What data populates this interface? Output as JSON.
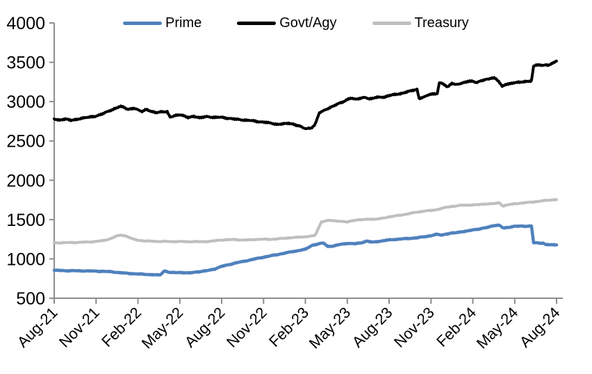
{
  "chart_data": {
    "type": "line",
    "title": "",
    "legend_position": "top",
    "grid": false,
    "x_axis": {
      "unit": "month",
      "range_months": [
        0,
        36
      ],
      "tick_every_months": 3,
      "tick_labels": [
        "Aug-21",
        "Nov-21",
        "Feb-22",
        "May-22",
        "Aug-22",
        "Nov-22",
        "Feb-23",
        "May-23",
        "Aug-23",
        "Nov-23",
        "Feb-24",
        "May-24",
        "Aug-24"
      ]
    },
    "y_axis": {
      "range": [
        500,
        4000
      ],
      "ticks": [
        500,
        1000,
        1500,
        2000,
        2500,
        3000,
        3500,
        4000
      ],
      "tick_labels": [
        "500",
        "1000",
        "1500",
        "2000",
        "2500",
        "3000",
        "3500",
        "4000"
      ]
    },
    "colors": {
      "prime": "#4F81BD",
      "govt_agy": "#000000",
      "treasury": "#BFBFBF",
      "axis": "#8C8C8C",
      "text": "#000000"
    },
    "series": [
      {
        "name": "Prime",
        "color": "#4F81BD",
        "points": [
          [
            0,
            855
          ],
          [
            1,
            850
          ],
          [
            2,
            848
          ],
          [
            3,
            845
          ],
          [
            4,
            838
          ],
          [
            5,
            820
          ],
          [
            6,
            808
          ],
          [
            7,
            800
          ],
          [
            7.6,
            798
          ],
          [
            7.9,
            845
          ],
          [
            8.3,
            825
          ],
          [
            9,
            828
          ],
          [
            9.7,
            822
          ],
          [
            10.4,
            835
          ],
          [
            11,
            852
          ],
          [
            11.5,
            872
          ],
          [
            12,
            905
          ],
          [
            13,
            948
          ],
          [
            14,
            985
          ],
          [
            15,
            1022
          ],
          [
            16,
            1055
          ],
          [
            17,
            1090
          ],
          [
            18,
            1122
          ],
          [
            18.5,
            1175
          ],
          [
            19,
            1192
          ],
          [
            19.3,
            1205
          ],
          [
            19.6,
            1158
          ],
          [
            20,
            1162
          ],
          [
            20.5,
            1185
          ],
          [
            21,
            1198
          ],
          [
            21.5,
            1192
          ],
          [
            22,
            1205
          ],
          [
            22.4,
            1228
          ],
          [
            22.8,
            1215
          ],
          [
            23.5,
            1228
          ],
          [
            24,
            1242
          ],
          [
            25,
            1255
          ],
          [
            26,
            1268
          ],
          [
            27,
            1295
          ],
          [
            27.4,
            1315
          ],
          [
            27.8,
            1305
          ],
          [
            28.4,
            1328
          ],
          [
            29,
            1340
          ],
          [
            29.6,
            1355
          ],
          [
            30,
            1370
          ],
          [
            30.5,
            1382
          ],
          [
            31,
            1398
          ],
          [
            31.5,
            1425
          ],
          [
            31.9,
            1430
          ],
          [
            32.2,
            1392
          ],
          [
            32.6,
            1400
          ],
          [
            33,
            1415
          ],
          [
            33.4,
            1418
          ],
          [
            33.8,
            1415
          ],
          [
            34.2,
            1420
          ],
          [
            34.35,
            1205
          ],
          [
            34.8,
            1202
          ],
          [
            35.05,
            1200
          ],
          [
            35.2,
            1185
          ],
          [
            35.6,
            1182
          ],
          [
            36,
            1178
          ]
        ]
      },
      {
        "name": "Govt/Agy",
        "color": "#000000",
        "points": [
          [
            0,
            2775
          ],
          [
            0.4,
            2760
          ],
          [
            0.8,
            2778
          ],
          [
            1.2,
            2762
          ],
          [
            1.6,
            2772
          ],
          [
            2,
            2790
          ],
          [
            2.5,
            2800
          ],
          [
            3,
            2818
          ],
          [
            3.5,
            2845
          ],
          [
            4,
            2888
          ],
          [
            4.3,
            2905
          ],
          [
            4.7,
            2938
          ],
          [
            5,
            2928
          ],
          [
            5.3,
            2902
          ],
          [
            5.7,
            2918
          ],
          [
            6,
            2892
          ],
          [
            6.3,
            2878
          ],
          [
            6.6,
            2898
          ],
          [
            7,
            2868
          ],
          [
            7.3,
            2862
          ],
          [
            7.7,
            2872
          ],
          [
            8.1,
            2870
          ],
          [
            8.3,
            2802
          ],
          [
            8.6,
            2822
          ],
          [
            9,
            2835
          ],
          [
            9.3,
            2815
          ],
          [
            9.6,
            2802
          ],
          [
            10,
            2815
          ],
          [
            10.4,
            2798
          ],
          [
            10.7,
            2802
          ],
          [
            11,
            2810
          ],
          [
            11.5,
            2798
          ],
          [
            12,
            2800
          ],
          [
            12.5,
            2788
          ],
          [
            13,
            2775
          ],
          [
            13.5,
            2768
          ],
          [
            14,
            2760
          ],
          [
            14.5,
            2748
          ],
          [
            15,
            2740
          ],
          [
            15.5,
            2725
          ],
          [
            16,
            2712
          ],
          [
            16.4,
            2722
          ],
          [
            16.8,
            2728
          ],
          [
            17.2,
            2712
          ],
          [
            17.5,
            2692
          ],
          [
            17.8,
            2672
          ],
          [
            18.1,
            2655
          ],
          [
            18.4,
            2660
          ],
          [
            18.7,
            2712
          ],
          [
            19,
            2858
          ],
          [
            19.3,
            2888
          ],
          [
            19.6,
            2905
          ],
          [
            20,
            2940
          ],
          [
            20.4,
            2975
          ],
          [
            20.8,
            3002
          ],
          [
            21,
            3025
          ],
          [
            21.3,
            3045
          ],
          [
            21.6,
            3032
          ],
          [
            22,
            3045
          ],
          [
            22.3,
            3052
          ],
          [
            22.6,
            3035
          ],
          [
            23,
            3055
          ],
          [
            23.4,
            3062
          ],
          [
            23.7,
            3052
          ],
          [
            24,
            3080
          ],
          [
            24.4,
            3092
          ],
          [
            24.8,
            3098
          ],
          [
            25.2,
            3118
          ],
          [
            25.6,
            3138
          ],
          [
            26,
            3150
          ],
          [
            26.15,
            3040
          ],
          [
            26.5,
            3062
          ],
          [
            26.8,
            3082
          ],
          [
            27.1,
            3098
          ],
          [
            27.45,
            3105
          ],
          [
            27.6,
            3238
          ],
          [
            27.9,
            3225
          ],
          [
            28.2,
            3185
          ],
          [
            28.5,
            3232
          ],
          [
            28.8,
            3218
          ],
          [
            29.1,
            3225
          ],
          [
            29.4,
            3248
          ],
          [
            29.7,
            3255
          ],
          [
            30,
            3262
          ],
          [
            30.3,
            3238
          ],
          [
            30.6,
            3268
          ],
          [
            31,
            3285
          ],
          [
            31.3,
            3298
          ],
          [
            31.6,
            3295
          ],
          [
            31.85,
            3255
          ],
          [
            32.1,
            3195
          ],
          [
            32.4,
            3218
          ],
          [
            32.7,
            3232
          ],
          [
            33,
            3238
          ],
          [
            33.4,
            3245
          ],
          [
            33.8,
            3252
          ],
          [
            34.2,
            3262
          ],
          [
            34.35,
            3448
          ],
          [
            34.6,
            3468
          ],
          [
            34.9,
            3458
          ],
          [
            35.2,
            3472
          ],
          [
            35.45,
            3462
          ],
          [
            35.7,
            3488
          ],
          [
            36,
            3518
          ]
        ]
      },
      {
        "name": "Treasury",
        "color": "#BFBFBF",
        "points": [
          [
            0,
            1205
          ],
          [
            0.5,
            1205
          ],
          [
            1,
            1208
          ],
          [
            1.5,
            1208
          ],
          [
            2,
            1212
          ],
          [
            2.5,
            1215
          ],
          [
            3,
            1222
          ],
          [
            3.5,
            1232
          ],
          [
            4,
            1255
          ],
          [
            4.5,
            1292
          ],
          [
            4.8,
            1305
          ],
          [
            5.2,
            1288
          ],
          [
            5.6,
            1258
          ],
          [
            6,
            1238
          ],
          [
            6.5,
            1228
          ],
          [
            7,
            1225
          ],
          [
            7.5,
            1222
          ],
          [
            8,
            1222
          ],
          [
            8.5,
            1220
          ],
          [
            9,
            1222
          ],
          [
            9.5,
            1218
          ],
          [
            10,
            1220
          ],
          [
            10.5,
            1218
          ],
          [
            11,
            1222
          ],
          [
            11.5,
            1230
          ],
          [
            12,
            1240
          ],
          [
            12.5,
            1245
          ],
          [
            13,
            1245
          ],
          [
            13.5,
            1240
          ],
          [
            14,
            1242
          ],
          [
            14.5,
            1248
          ],
          [
            15,
            1250
          ],
          [
            15.5,
            1248
          ],
          [
            16,
            1255
          ],
          [
            16.5,
            1262
          ],
          [
            17,
            1270
          ],
          [
            17.5,
            1275
          ],
          [
            18,
            1282
          ],
          [
            18.4,
            1292
          ],
          [
            18.7,
            1300
          ],
          [
            19.15,
            1472
          ],
          [
            19.5,
            1485
          ],
          [
            19.8,
            1490
          ],
          [
            20.2,
            1480
          ],
          [
            20.6,
            1475
          ],
          [
            21,
            1468
          ],
          [
            21.4,
            1485
          ],
          [
            21.8,
            1495
          ],
          [
            22.2,
            1500
          ],
          [
            22.6,
            1505
          ],
          [
            23,
            1503
          ],
          [
            23.5,
            1515
          ],
          [
            24,
            1535
          ],
          [
            24.5,
            1548
          ],
          [
            25,
            1562
          ],
          [
            25.5,
            1578
          ],
          [
            26,
            1595
          ],
          [
            26.5,
            1608
          ],
          [
            27,
            1615
          ],
          [
            27.5,
            1630
          ],
          [
            28,
            1652
          ],
          [
            28.5,
            1668
          ],
          [
            29,
            1678
          ],
          [
            29.3,
            1685
          ],
          [
            29.7,
            1682
          ],
          [
            30,
            1688
          ],
          [
            30.4,
            1692
          ],
          [
            30.8,
            1698
          ],
          [
            31.2,
            1702
          ],
          [
            31.6,
            1708
          ],
          [
            31.9,
            1712
          ],
          [
            32.15,
            1672
          ],
          [
            32.5,
            1688
          ],
          [
            33,
            1700
          ],
          [
            33.5,
            1710
          ],
          [
            34,
            1718
          ],
          [
            34.5,
            1728
          ],
          [
            35,
            1738
          ],
          [
            35.5,
            1748
          ],
          [
            36,
            1756
          ]
        ]
      }
    ]
  }
}
